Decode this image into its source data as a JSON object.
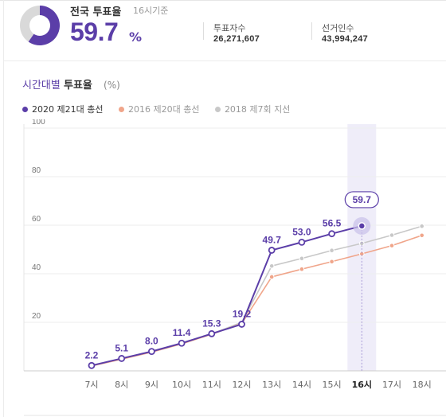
{
  "header": {
    "national_label": "전국 투표율",
    "base_time": "16시기준",
    "rate_value": "59.7",
    "rate_unit": "%",
    "rate_fraction": 0.597,
    "voters_label": "투표자수",
    "voters_value": "26,271,607",
    "electors_label": "선거인수",
    "electors_value": "43,994,247"
  },
  "section": {
    "title_part1": "시간대별",
    "title_part2": "투표율",
    "unit": "(%)"
  },
  "colors": {
    "series_2020": "#5b3ea8",
    "series_2016": "#f0a58a",
    "series_2018": "#c8c8c8",
    "highlight": "#efedf9",
    "donut_bg": "#d9d9d9"
  },
  "chart_data": {
    "type": "line",
    "categories": [
      "7시",
      "8시",
      "9시",
      "10시",
      "11시",
      "12시",
      "13시",
      "14시",
      "15시",
      "16시",
      "17시",
      "18시"
    ],
    "highlight_category": "16시",
    "ylim": [
      0,
      100
    ],
    "yticks": [
      20,
      40,
      60,
      80,
      100
    ],
    "legend_position": "top-left",
    "series": [
      {
        "name": "2020 제21대 총선",
        "values": [
          2.2,
          5.1,
          8.0,
          11.4,
          15.3,
          19.2,
          49.7,
          53.0,
          56.5,
          59.7,
          null,
          null
        ],
        "labels": [
          "2.2",
          "5.1",
          "8.0",
          "11.4",
          "15.3",
          "19.2",
          "49.7",
          "53.0",
          "56.5",
          "59.7",
          "",
          ""
        ]
      },
      {
        "name": "2016 제20대 총선",
        "values": [
          2.0,
          4.8,
          7.7,
          11.1,
          15.1,
          19.5,
          38.7,
          41.9,
          45.0,
          48.2,
          51.6,
          55.8
        ]
      },
      {
        "name": "2018 제7회 지선",
        "values": [
          2.1,
          5.0,
          7.9,
          11.2,
          15.2,
          20.0,
          43.2,
          46.3,
          49.6,
          52.5,
          55.9,
          59.6
        ]
      }
    ]
  }
}
